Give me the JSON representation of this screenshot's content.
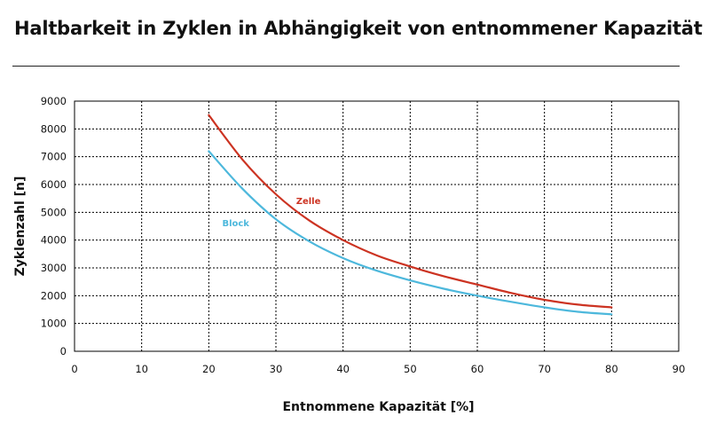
{
  "chart_data": {
    "type": "line",
    "title": "Haltbarkeit in Zyklen in Abhängigkeit von entnommener Kapazität",
    "xlabel": "Entnommene Kapazität [%]",
    "ylabel": "Zyklenzahl [n]",
    "xlim": [
      0,
      90
    ],
    "ylim": [
      0,
      9000
    ],
    "xticks": [
      "0",
      "10",
      "20",
      "30",
      "40",
      "50",
      "60",
      "70",
      "80",
      "90"
    ],
    "yticks": [
      "0",
      "1000",
      "2000",
      "3000",
      "4000",
      "5000",
      "6000",
      "7000",
      "8000",
      "9000"
    ],
    "grid": true,
    "series": [
      {
        "name": "Zelle",
        "color": "#cc3322",
        "x": [
          20,
          25,
          30,
          35,
          40,
          45,
          50,
          55,
          60,
          65,
          70,
          75,
          80
        ],
        "values": [
          8500,
          6900,
          5650,
          4700,
          4000,
          3450,
          3050,
          2700,
          2400,
          2100,
          1850,
          1680,
          1580
        ]
      },
      {
        "name": "Block",
        "color": "#4db8dc",
        "x": [
          20,
          25,
          30,
          35,
          40,
          45,
          50,
          55,
          60,
          65,
          70,
          75,
          80
        ],
        "values": [
          7200,
          5850,
          4750,
          3950,
          3350,
          2900,
          2550,
          2250,
          2000,
          1780,
          1580,
          1420,
          1330
        ]
      }
    ]
  }
}
